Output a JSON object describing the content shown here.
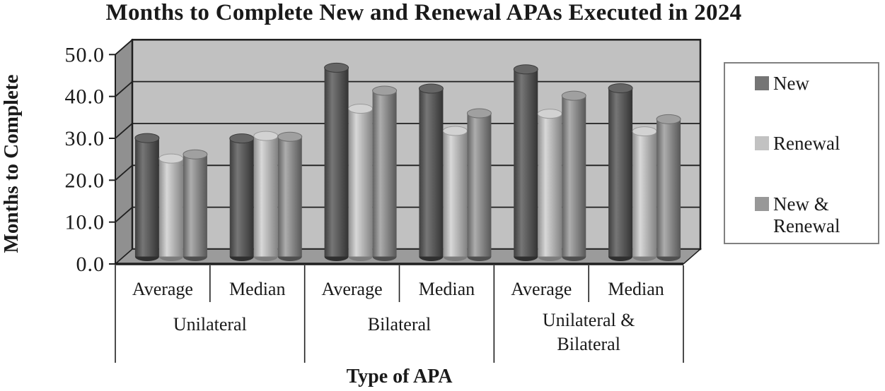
{
  "title": "Months to Complete New and Renewal APAs Executed in 2024",
  "y_axis": {
    "title": "Months to Complete",
    "tick_labels": [
      "0.0",
      "10.0",
      "20.0",
      "30.0",
      "40.0",
      "50.0"
    ],
    "tick_values": [
      0,
      10,
      20,
      30,
      40,
      50
    ]
  },
  "x_axis": {
    "title": "Type of APA",
    "groups": [
      {
        "label": "Unilateral",
        "label_lines": [
          "Unilateral"
        ],
        "sub_labels": [
          "Average",
          "Median"
        ]
      },
      {
        "label": "Bilateral",
        "label_lines": [
          "Bilateral"
        ],
        "sub_labels": [
          "Average",
          "Median"
        ]
      },
      {
        "label": "Unilateral & Bilateral",
        "label_lines": [
          "Unilateral &",
          "Bilateral"
        ],
        "sub_labels": [
          "Average",
          "Median"
        ]
      }
    ]
  },
  "legend": {
    "position": "right",
    "items": [
      {
        "label": "New",
        "label_lines": [
          "New"
        ],
        "color": "#757575"
      },
      {
        "label": "Renewal",
        "label_lines": [
          "Renewal"
        ],
        "color": "#c2c2c2"
      },
      {
        "label": "New & Renewal",
        "label_lines": [
          "New &",
          "Renewal"
        ],
        "color": "#989898"
      }
    ]
  },
  "chart_data": {
    "type": "bar",
    "style": "3d-cylinder",
    "title": "Months to Complete New and Renewal APAs Executed in 2024",
    "xlabel": "Type of APA",
    "ylabel": "Months to Complete",
    "ylim": [
      0,
      50
    ],
    "y_tick_step": 10,
    "grid": true,
    "legend_position": "right",
    "categories": [
      "Unilateral Average",
      "Unilateral Median",
      "Bilateral Average",
      "Bilateral Median",
      "Unilateral & Bilateral Average",
      "Unilateral & Bilateral Median"
    ],
    "series": [
      {
        "name": "New",
        "values": [
          28.3,
          28.2,
          45.1,
          40.1,
          44.7,
          40.2
        ]
      },
      {
        "name": "Renewal",
        "values": [
          23.4,
          28.8,
          35.3,
          30.0,
          34.1,
          29.9
        ]
      },
      {
        "name": "New & Renewal",
        "values": [
          24.4,
          28.6,
          39.6,
          34.2,
          38.4,
          32.8
        ]
      }
    ]
  },
  "colors": {
    "back_wall": "#c1c1c1",
    "side_wall": "#909090",
    "floor": "#9b9b9b",
    "line": "#1f1f1f",
    "text": "#1a1a1a",
    "legend_border": "#808080",
    "series": [
      {
        "edge": "#3e3e3e",
        "mid": "#767676",
        "edge2": "#333333",
        "top": "#656565",
        "top_stroke": "#3c3c3c",
        "bottom": "#2f2f2f"
      },
      {
        "edge": "#8f8f8f",
        "mid": "#d8d8d8",
        "edge2": "#828282",
        "top": "#d2d2d2",
        "top_stroke": "#9a9a9a",
        "bottom": "#7d7d7d"
      },
      {
        "edge": "#616161",
        "mid": "#adadad",
        "edge2": "#575757",
        "top": "#a0a0a0",
        "top_stroke": "#6f6f6f",
        "bottom": "#4f4f4f"
      }
    ]
  }
}
